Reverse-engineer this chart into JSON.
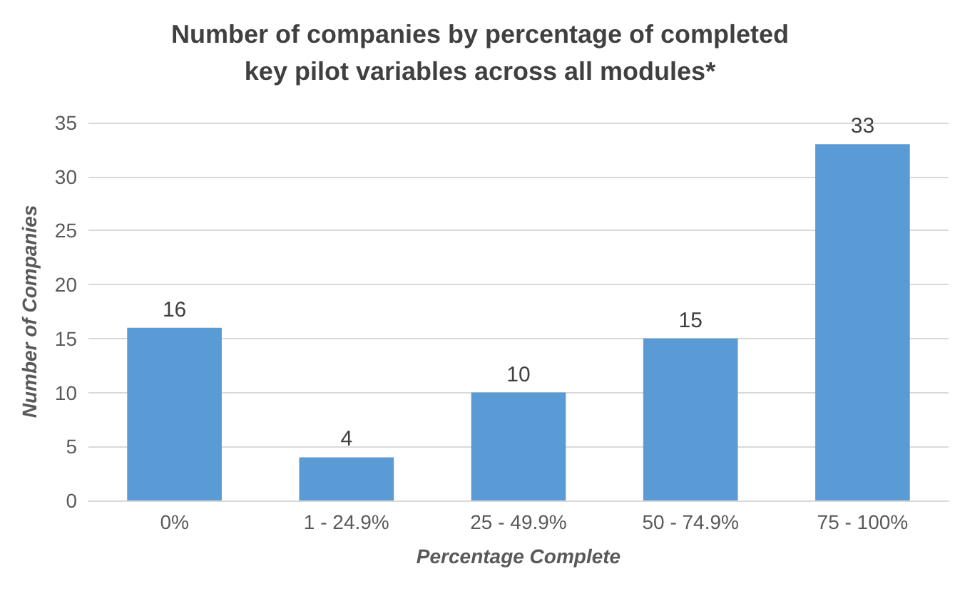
{
  "chart_data": {
    "type": "bar",
    "title": "Number of companies by percentage of completed\nkey pilot variables across all modules*",
    "xlabel": "Percentage Complete",
    "ylabel": "Number of Companies",
    "categories": [
      "0%",
      "1 - 24.9%",
      "25 - 49.9%",
      "50 - 74.9%",
      "75 - 100%"
    ],
    "values": [
      16,
      4,
      10,
      15,
      33
    ],
    "color": "#5b9bd5",
    "ylim": [
      0,
      35
    ],
    "yticks": [
      0,
      5,
      10,
      15,
      20,
      25,
      30,
      35
    ],
    "grid": "y",
    "data_labels": true
  }
}
